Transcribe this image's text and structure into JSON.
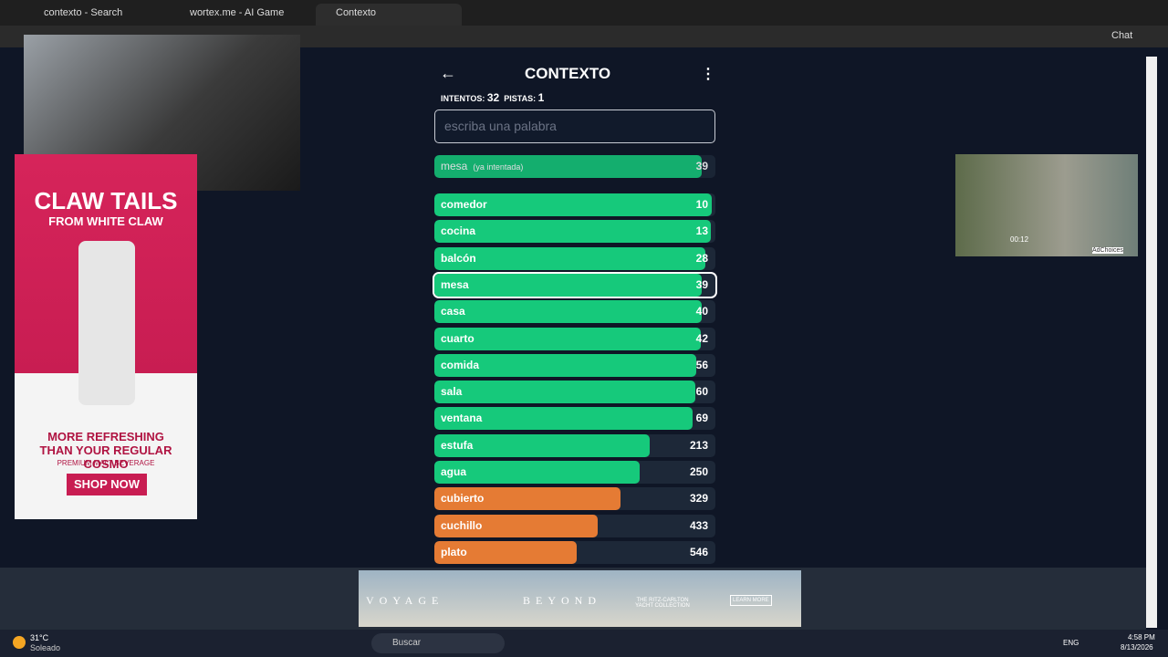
{
  "browser": {
    "tabs": [
      "contexto - Search",
      "wortex.me - AI Game",
      "Contexto"
    ],
    "chat": "Chat"
  },
  "game": {
    "title": "CONTEXTO",
    "attempts_label": "INTENTOS:",
    "attempts": 32,
    "hints_label": "PISTAS:",
    "hints": 1,
    "placeholder": "escriba una palabra",
    "last_guess": {
      "word": "mesa",
      "note": "(ya intentada)",
      "rank": 39
    },
    "guesses": [
      {
        "word": "comedor",
        "rank": 10
      },
      {
        "word": "cocina",
        "rank": 13
      },
      {
        "word": "balcón",
        "rank": 28
      },
      {
        "word": "mesa",
        "rank": 39
      },
      {
        "word": "casa",
        "rank": 40
      },
      {
        "word": "cuarto",
        "rank": 42
      },
      {
        "word": "comida",
        "rank": 56
      },
      {
        "word": "sala",
        "rank": 60
      },
      {
        "word": "ventana",
        "rank": 69
      },
      {
        "word": "estufa",
        "rank": 213
      },
      {
        "word": "agua",
        "rank": 250
      },
      {
        "word": "cubierto",
        "rank": 329
      },
      {
        "word": "cuchillo",
        "rank": 433
      },
      {
        "word": "plato",
        "rank": 546
      }
    ]
  },
  "ad_left": {
    "brand": "CLAW TAILS",
    "from": "FROM WHITE CLAW",
    "headline": "MORE REFRESHING THAN YOUR REGULAR COSMO",
    "sub": "PREMIUM MALT BEVERAGE",
    "cta": "SHOP NOW"
  },
  "ad_right": {
    "time": "00:12",
    "choices": "AdChoices"
  },
  "ad_bottom": {
    "left": "VOYAGE",
    "right": "BEYOND",
    "brand": "THE RITZ-CARLTON YACHT COLLECTION",
    "cta": "LEARN MORE"
  },
  "taskbar": {
    "temp": "31°C",
    "weather": "Soleado",
    "search": "Buscar",
    "lang": "ENG",
    "time": "4:58 PM",
    "date": "8/13/2026"
  }
}
